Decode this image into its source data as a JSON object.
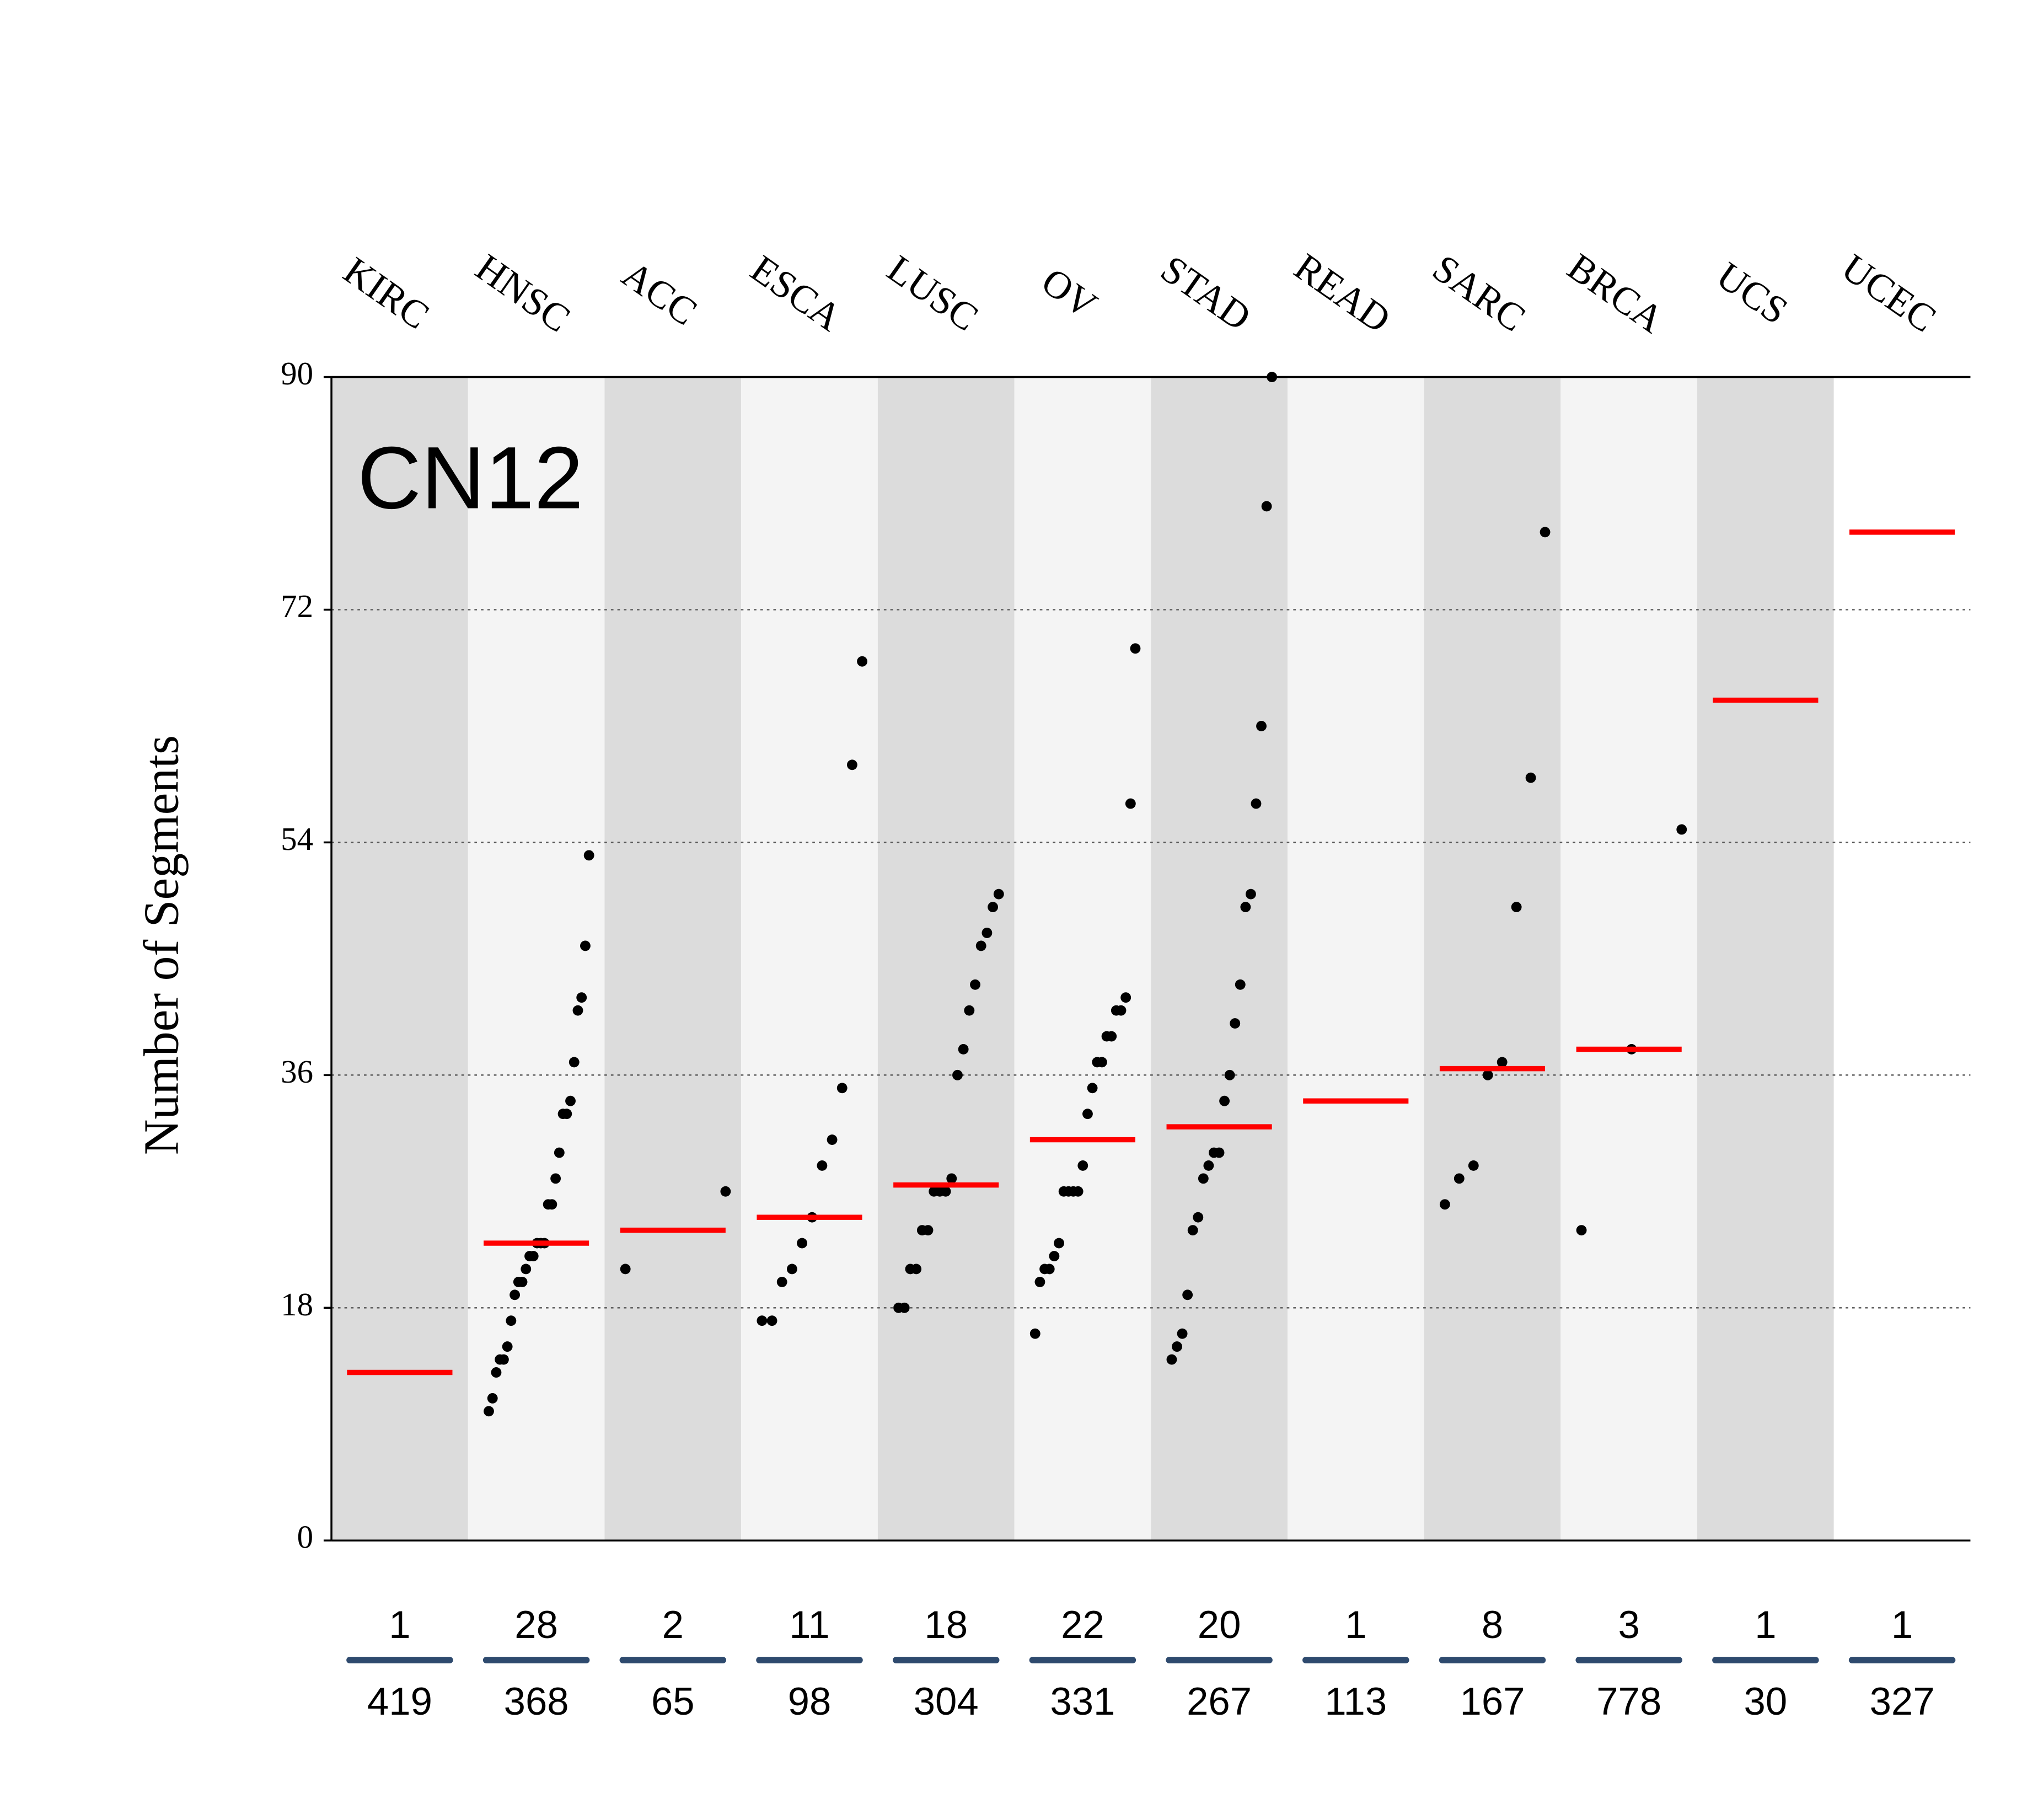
{
  "chart_data": {
    "type": "strip",
    "title": "CN12",
    "ylabel": "Number of Segments",
    "categories": [
      "KIRC",
      "HNSC",
      "ACC",
      "ESCA",
      "LUSC",
      "OV",
      "STAD",
      "READ",
      "SARC",
      "BRCA",
      "UCS",
      "UCEC"
    ],
    "values": [
      [],
      [
        10,
        11,
        13,
        14,
        14,
        15,
        17,
        19,
        20,
        20,
        21,
        22,
        22,
        23,
        23,
        23,
        26,
        26,
        28,
        30,
        33,
        33,
        34,
        37,
        41,
        42,
        46,
        53
      ],
      [
        21,
        27
      ],
      [
        17,
        17,
        20,
        21,
        23,
        25,
        29,
        31,
        35,
        60,
        68
      ],
      [
        18,
        18,
        21,
        21,
        24,
        24,
        27,
        27,
        27,
        28,
        36,
        38,
        41,
        43,
        46,
        47,
        49,
        50
      ],
      [
        16,
        20,
        21,
        21,
        22,
        23,
        27,
        27,
        27,
        27,
        29,
        33,
        35,
        37,
        37,
        39,
        39,
        41,
        41,
        42,
        57,
        69
      ],
      [
        14,
        15,
        16,
        19,
        24,
        25,
        28,
        29,
        30,
        30,
        34,
        36,
        40,
        43,
        49,
        50,
        57,
        63,
        80,
        90
      ],
      [],
      [
        26,
        28,
        29,
        36,
        37,
        49,
        59,
        78
      ],
      [
        24,
        38,
        55
      ],
      [],
      []
    ],
    "medians": [
      13,
      23,
      24,
      25,
      27.5,
      31,
      32,
      34,
      36.5,
      38,
      65,
      78
    ],
    "counts": [
      1,
      28,
      2,
      11,
      18,
      22,
      20,
      1,
      8,
      3,
      1,
      1
    ],
    "totals": [
      419,
      368,
      65,
      98,
      304,
      331,
      267,
      113,
      167,
      778,
      30,
      327
    ],
    "ylim": [
      0,
      90
    ],
    "yticks": [
      0,
      18,
      36,
      54,
      72,
      90
    ],
    "grid": true,
    "point_color": "#000000",
    "median_color": "#ff0000",
    "divider_color": "#2e4a6e"
  }
}
